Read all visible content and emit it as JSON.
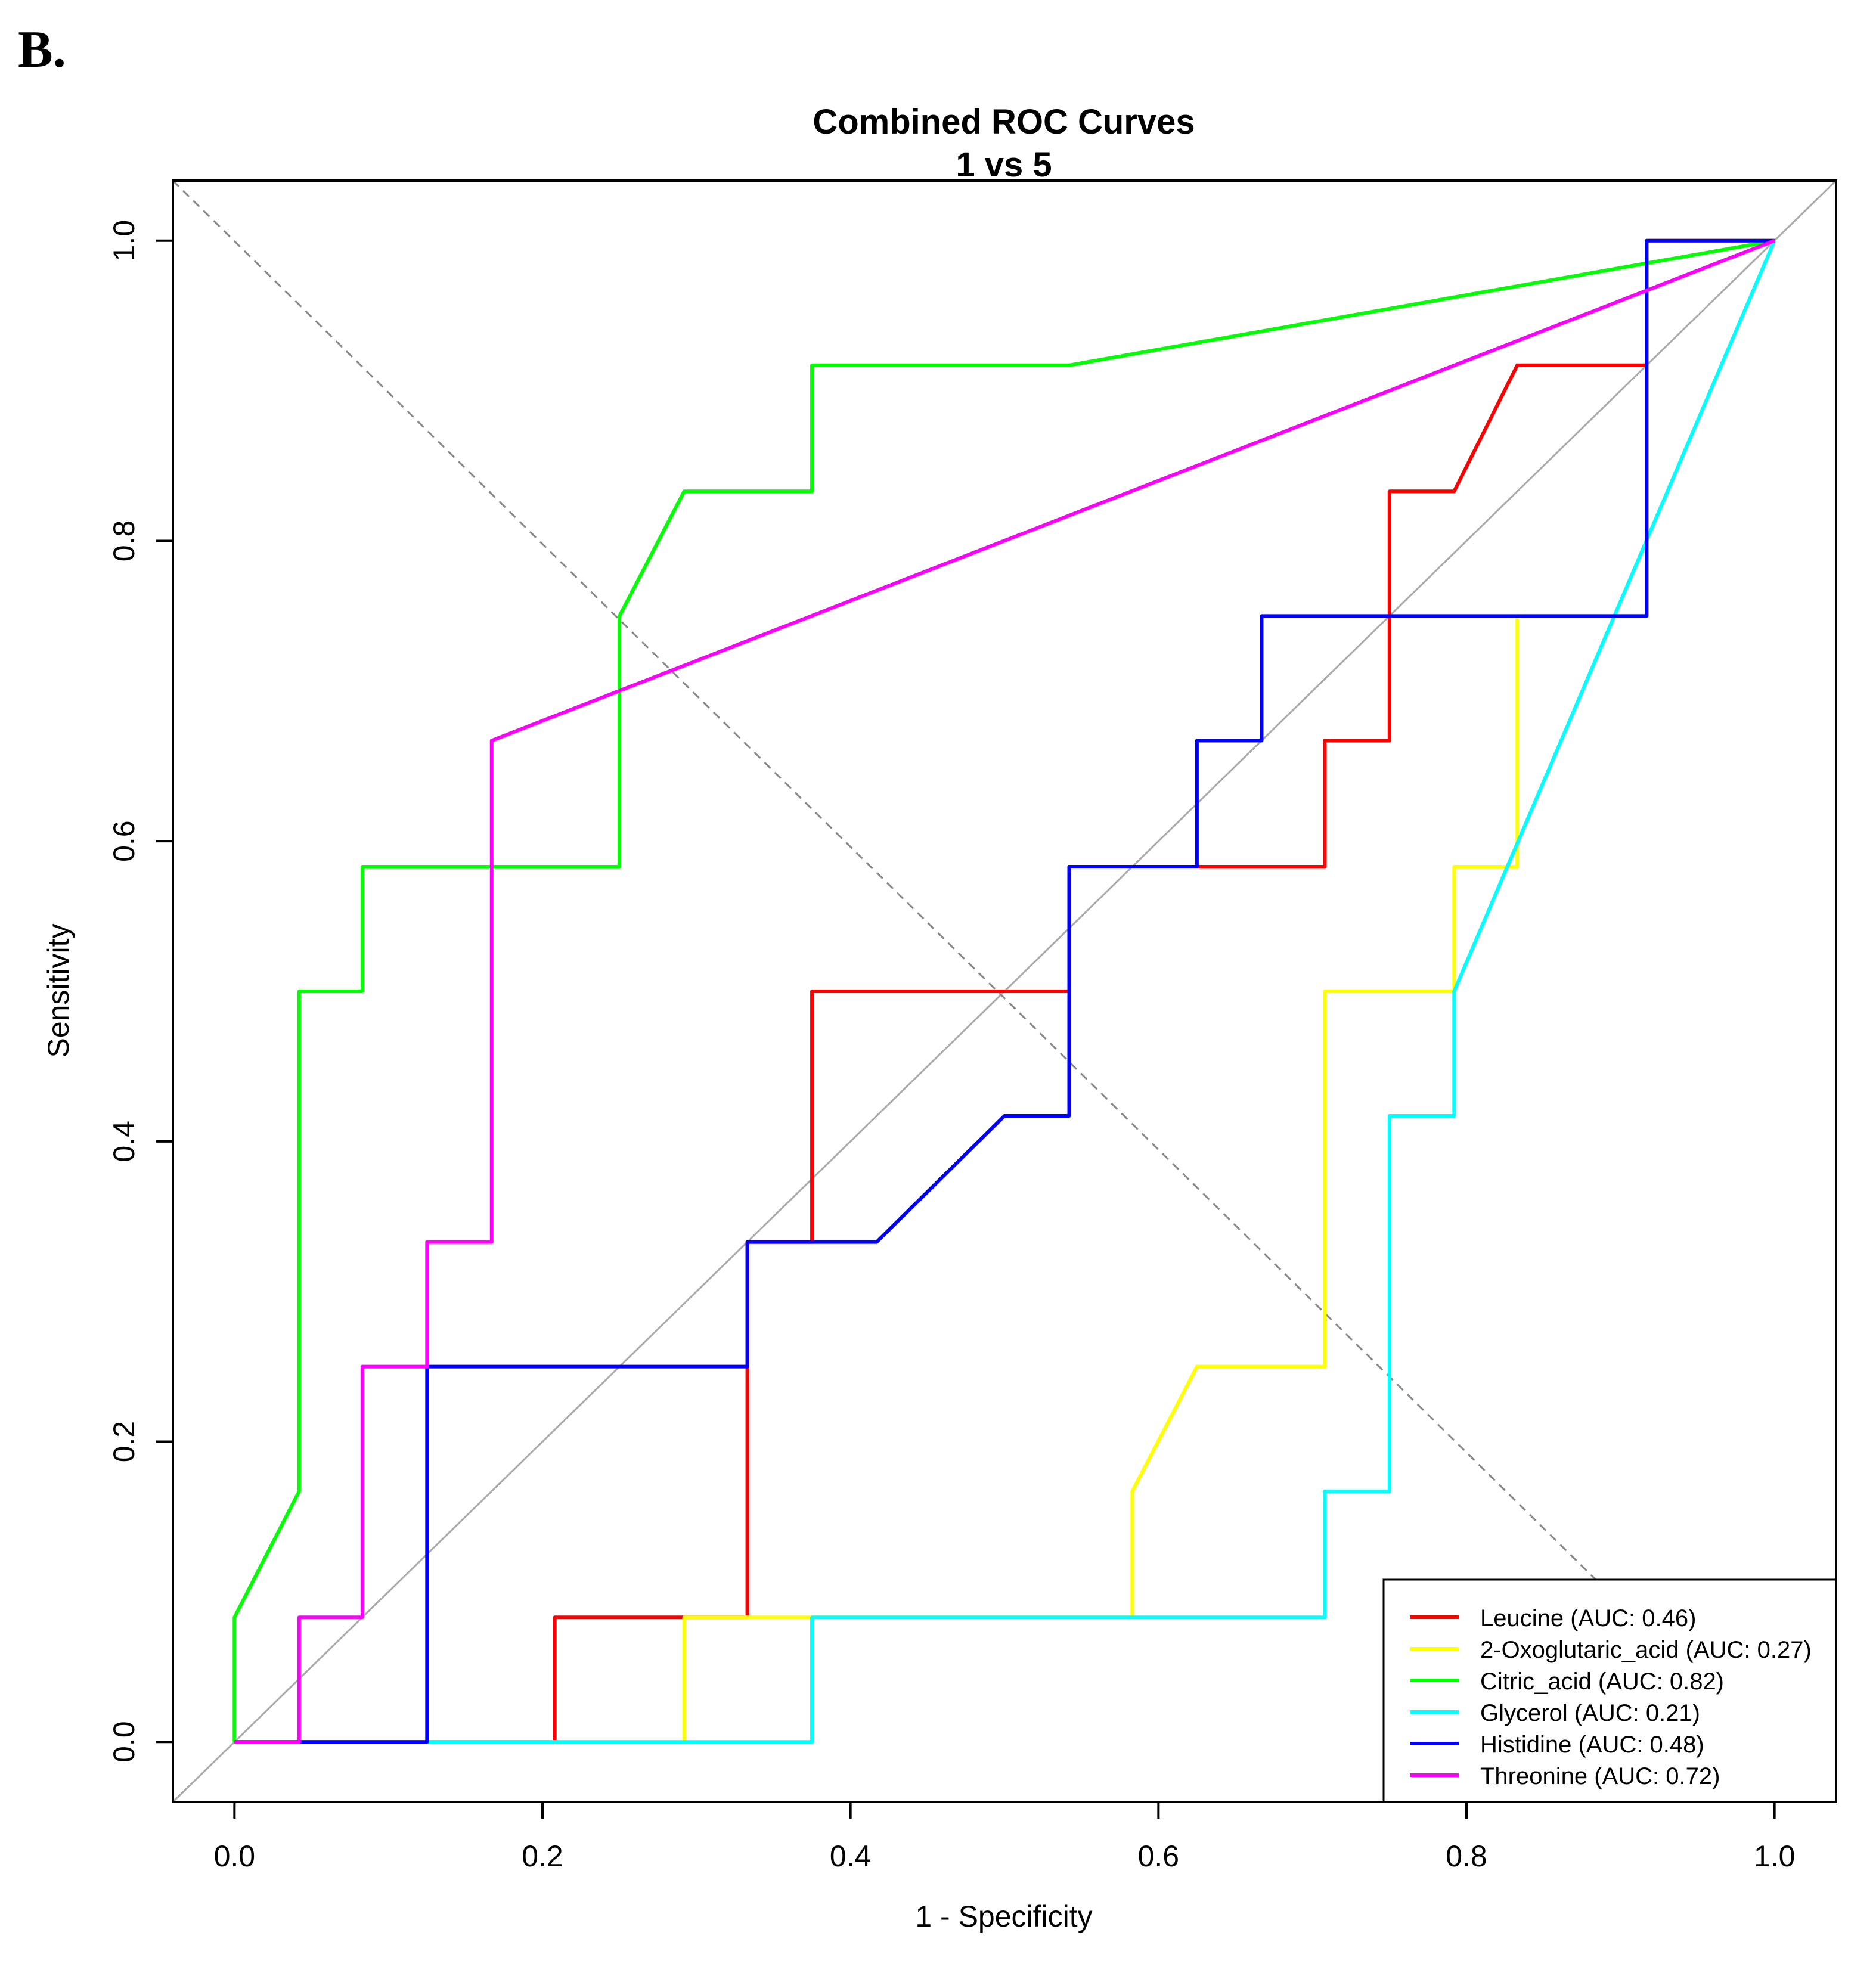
{
  "panel_label": "B.",
  "colors": {
    "frame": "#000000",
    "diagonal_solid": "#aaaaaa",
    "diagonal_dashed": "#888888"
  },
  "chart_data": {
    "type": "line",
    "title": "Combined ROC Curves",
    "subtitle": "1 vs 5",
    "xlabel": "1 - Specificity",
    "ylabel": "Sensitivity",
    "xlim": [
      -0.04,
      1.04
    ],
    "ylim": [
      -0.04,
      1.04
    ],
    "xticks": [
      0.0,
      0.2,
      0.4,
      0.6,
      0.8,
      1.0
    ],
    "xtick_labels": [
      "0.0",
      "0.2",
      "0.4",
      "0.6",
      "0.8",
      "1.0"
    ],
    "yticks": [
      0.0,
      0.2,
      0.4,
      0.6,
      0.8,
      1.0
    ],
    "ytick_labels": [
      "0.0",
      "0.2",
      "0.4",
      "0.6",
      "0.8",
      "1.0"
    ],
    "grid": false,
    "legend_position": "bottom-right",
    "reference_lines": [
      {
        "style": "solid",
        "points": [
          [
            -0.04,
            -0.04
          ],
          [
            1.04,
            1.04
          ]
        ]
      },
      {
        "style": "dashed",
        "points": [
          [
            -0.04,
            1.04
          ],
          [
            0.892,
            0.1
          ]
        ]
      }
    ],
    "series": [
      {
        "name": "Leucine (AUC: 0.46)",
        "color": "#ff0000",
        "points": [
          [
            0,
            0
          ],
          [
            0.208,
            0
          ],
          [
            0.208,
            0.083
          ],
          [
            0.333,
            0.083
          ],
          [
            0.333,
            0.333
          ],
          [
            0.375,
            0.333
          ],
          [
            0.375,
            0.5
          ],
          [
            0.542,
            0.5
          ],
          [
            0.542,
            0.583
          ],
          [
            0.708,
            0.583
          ],
          [
            0.708,
            0.667
          ],
          [
            0.75,
            0.667
          ],
          [
            0.75,
            0.833
          ],
          [
            0.792,
            0.833
          ],
          [
            0.833,
            0.917
          ],
          [
            0.917,
            0.917
          ],
          [
            0.917,
            1.0
          ],
          [
            1.0,
            1.0
          ]
        ]
      },
      {
        "name": "2-Oxoglutaric_acid (AUC: 0.27)",
        "color": "#ffff00",
        "points": [
          [
            0,
            0
          ],
          [
            0.292,
            0
          ],
          [
            0.292,
            0.083
          ],
          [
            0.583,
            0.083
          ],
          [
            0.583,
            0.167
          ],
          [
            0.625,
            0.25
          ],
          [
            0.708,
            0.25
          ],
          [
            0.708,
            0.5
          ],
          [
            0.792,
            0.5
          ],
          [
            0.792,
            0.583
          ],
          [
            0.833,
            0.583
          ],
          [
            0.833,
            0.75
          ],
          [
            0.917,
            0.75
          ],
          [
            0.917,
            1.0
          ],
          [
            1.0,
            1.0
          ]
        ]
      },
      {
        "name": "Citric_acid (AUC: 0.82)",
        "color": "#00ff00",
        "points": [
          [
            0,
            0
          ],
          [
            0,
            0.083
          ],
          [
            0.042,
            0.167
          ],
          [
            0.042,
            0.5
          ],
          [
            0.083,
            0.5
          ],
          [
            0.083,
            0.583
          ],
          [
            0.25,
            0.583
          ],
          [
            0.25,
            0.75
          ],
          [
            0.292,
            0.833
          ],
          [
            0.375,
            0.833
          ],
          [
            0.375,
            0.917
          ],
          [
            0.542,
            0.917
          ],
          [
            1.0,
            1.0
          ]
        ]
      },
      {
        "name": "Glycerol (AUC: 0.21)",
        "color": "#00ffff",
        "points": [
          [
            0,
            0
          ],
          [
            0.375,
            0
          ],
          [
            0.375,
            0.083
          ],
          [
            0.708,
            0.083
          ],
          [
            0.708,
            0.167
          ],
          [
            0.75,
            0.167
          ],
          [
            0.75,
            0.417
          ],
          [
            0.792,
            0.417
          ],
          [
            0.792,
            0.5
          ],
          [
            1.0,
            1.0
          ]
        ]
      },
      {
        "name": "Histidine (AUC: 0.48)",
        "color": "#0000ff",
        "points": [
          [
            0,
            0
          ],
          [
            0.125,
            0
          ],
          [
            0.125,
            0.25
          ],
          [
            0.333,
            0.25
          ],
          [
            0.333,
            0.333
          ],
          [
            0.417,
            0.333
          ],
          [
            0.5,
            0.417
          ],
          [
            0.542,
            0.417
          ],
          [
            0.542,
            0.583
          ],
          [
            0.625,
            0.583
          ],
          [
            0.625,
            0.667
          ],
          [
            0.667,
            0.667
          ],
          [
            0.667,
            0.75
          ],
          [
            0.917,
            0.75
          ],
          [
            0.917,
            1.0
          ],
          [
            1.0,
            1.0
          ]
        ]
      },
      {
        "name": "Threonine (AUC: 0.72)",
        "color": "#ff00ff",
        "points": [
          [
            0,
            0
          ],
          [
            0.042,
            0
          ],
          [
            0.042,
            0.083
          ],
          [
            0.083,
            0.083
          ],
          [
            0.083,
            0.25
          ],
          [
            0.125,
            0.25
          ],
          [
            0.125,
            0.333
          ],
          [
            0.167,
            0.333
          ],
          [
            0.167,
            0.667
          ],
          [
            1.0,
            1.0
          ]
        ]
      }
    ]
  }
}
